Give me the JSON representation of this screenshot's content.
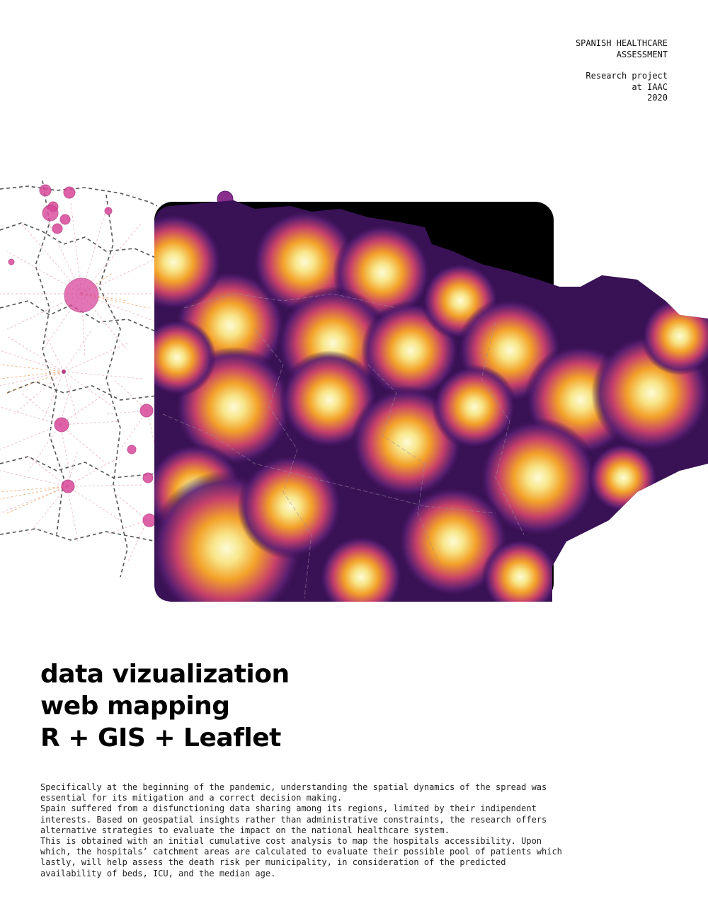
{
  "header": {
    "project_title_line1": "SPANISH HEALTHCARE",
    "project_title_line2": "ASSESSMENT",
    "subtitle_line1": "Research project",
    "subtitle_line2": "at IAAC",
    "year": "2020"
  },
  "headline": {
    "line1": "data vizualization",
    "line2": "web mapping",
    "line3": "R + GIS + Leaflet"
  },
  "body": {
    "paragraph1": "Specifically at the beginning of the pandemic, understanding the spatial dynamics of the spread was essential for its mitigation and a correct decision making.",
    "paragraph2": "Spain suffered from a disfunctioning data sharing among its regions, limited by their indipendent interests. Based on geospatial insights rather than administrative constraints, the research offers alternative strategies to evaluate the impact on the national healthcare system.",
    "paragraph3": "This is obtained with an initial cumulative cost analysis to map the hospitals accessibility. Upon which, the hospitals’ catchment areas are calculated to evaluate their possible pool of patients which lastly, will help assess the death risk per municipality, in consideration of the predicted availability of beds, ICU, and the median age."
  },
  "figure": {
    "colors": {
      "heat_low": "#0b0420",
      "heat_mid": "#5a1f72",
      "heat_high": "#f08a1c",
      "heat_peak": "#fbf5b0",
      "hospital": "#d9479a",
      "flow": "#e8a06a"
    },
    "hospital_icon": "circle-marker-icon"
  }
}
